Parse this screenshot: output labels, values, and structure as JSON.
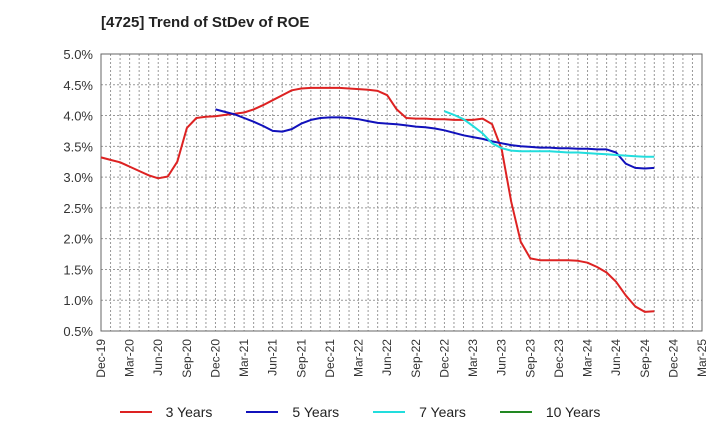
{
  "chart_data": {
    "type": "line",
    "title": "[4725]  Trend of StDev of ROE",
    "xlabel": "",
    "ylabel": "",
    "x_ticks": [
      "Dec-19",
      "Mar-20",
      "Jun-20",
      "Sep-20",
      "Dec-20",
      "Mar-21",
      "Jun-21",
      "Sep-21",
      "Dec-21",
      "Mar-22",
      "Jun-22",
      "Sep-22",
      "Dec-22",
      "Mar-23",
      "Jun-23",
      "Sep-23",
      "Dec-23",
      "Mar-24",
      "Jun-24",
      "Sep-24",
      "Dec-24",
      "Mar-25"
    ],
    "y_ticks": [
      "0.5%",
      "1.0%",
      "1.5%",
      "2.0%",
      "2.5%",
      "3.0%",
      "3.5%",
      "4.0%",
      "4.5%",
      "5.0%"
    ],
    "ylim": [
      0.5,
      5.0
    ],
    "grid": true,
    "legend_position": "bottom",
    "series": [
      {
        "name": "3 Years",
        "color": "#dd2222",
        "points": [
          [
            0,
            3.32
          ],
          [
            1,
            3.28
          ],
          [
            2,
            3.24
          ],
          [
            3,
            3.17
          ],
          [
            4,
            3.1
          ],
          [
            5,
            3.03
          ],
          [
            6,
            2.98
          ],
          [
            7,
            3.01
          ],
          [
            8,
            3.25
          ],
          [
            9,
            3.8
          ],
          [
            10,
            3.96
          ],
          [
            11,
            3.98
          ],
          [
            12,
            3.99
          ],
          [
            13,
            4.01
          ],
          [
            14,
            4.03
          ],
          [
            15,
            4.05
          ],
          [
            16,
            4.1
          ],
          [
            17,
            4.17
          ],
          [
            18,
            4.25
          ],
          [
            19,
            4.33
          ],
          [
            20,
            4.41
          ],
          [
            21,
            4.44
          ],
          [
            22,
            4.45
          ],
          [
            23,
            4.45
          ],
          [
            24,
            4.45
          ],
          [
            25,
            4.45
          ],
          [
            26,
            4.44
          ],
          [
            27,
            4.43
          ],
          [
            28,
            4.42
          ],
          [
            29,
            4.4
          ],
          [
            30,
            4.33
          ],
          [
            31,
            4.1
          ],
          [
            32,
            3.96
          ],
          [
            33,
            3.95
          ],
          [
            34,
            3.95
          ],
          [
            35,
            3.94
          ],
          [
            36,
            3.94
          ],
          [
            37,
            3.93
          ],
          [
            38,
            3.93
          ],
          [
            39,
            3.93
          ],
          [
            40,
            3.95
          ],
          [
            41,
            3.86
          ],
          [
            42,
            3.45
          ],
          [
            43,
            2.6
          ],
          [
            44,
            1.95
          ],
          [
            45,
            1.68
          ],
          [
            46,
            1.65
          ],
          [
            47,
            1.65
          ],
          [
            48,
            1.65
          ],
          [
            49,
            1.65
          ],
          [
            50,
            1.64
          ],
          [
            51,
            1.61
          ],
          [
            52,
            1.54
          ],
          [
            53,
            1.45
          ],
          [
            54,
            1.3
          ],
          [
            55,
            1.08
          ],
          [
            56,
            0.9
          ],
          [
            57,
            0.81
          ],
          [
            58,
            0.82
          ]
        ]
      },
      {
        "name": "5 Years",
        "color": "#1111bb",
        "points": [
          [
            12,
            4.1
          ],
          [
            13,
            4.06
          ],
          [
            14,
            4.02
          ],
          [
            15,
            3.96
          ],
          [
            16,
            3.9
          ],
          [
            17,
            3.83
          ],
          [
            18,
            3.75
          ],
          [
            19,
            3.74
          ],
          [
            20,
            3.78
          ],
          [
            21,
            3.87
          ],
          [
            22,
            3.93
          ],
          [
            23,
            3.96
          ],
          [
            24,
            3.97
          ],
          [
            25,
            3.97
          ],
          [
            26,
            3.96
          ],
          [
            27,
            3.94
          ],
          [
            28,
            3.91
          ],
          [
            29,
            3.88
          ],
          [
            30,
            3.87
          ],
          [
            31,
            3.86
          ],
          [
            32,
            3.84
          ],
          [
            33,
            3.82
          ],
          [
            34,
            3.81
          ],
          [
            35,
            3.79
          ],
          [
            36,
            3.76
          ],
          [
            37,
            3.72
          ],
          [
            38,
            3.68
          ],
          [
            39,
            3.65
          ],
          [
            40,
            3.62
          ],
          [
            41,
            3.58
          ],
          [
            42,
            3.55
          ],
          [
            43,
            3.52
          ],
          [
            44,
            3.5
          ],
          [
            45,
            3.49
          ],
          [
            46,
            3.48
          ],
          [
            47,
            3.48
          ],
          [
            48,
            3.47
          ],
          [
            49,
            3.47
          ],
          [
            50,
            3.46
          ],
          [
            51,
            3.46
          ],
          [
            52,
            3.45
          ],
          [
            53,
            3.45
          ],
          [
            54,
            3.4
          ],
          [
            55,
            3.22
          ],
          [
            56,
            3.15
          ],
          [
            57,
            3.14
          ],
          [
            58,
            3.15
          ]
        ]
      },
      {
        "name": "7 Years",
        "color": "#22dddd",
        "points": [
          [
            36,
            4.07
          ],
          [
            37,
            4.01
          ],
          [
            38,
            3.94
          ],
          [
            39,
            3.83
          ],
          [
            40,
            3.71
          ],
          [
            41,
            3.55
          ],
          [
            42,
            3.47
          ],
          [
            43,
            3.43
          ],
          [
            44,
            3.42
          ],
          [
            45,
            3.42
          ],
          [
            46,
            3.42
          ],
          [
            47,
            3.42
          ],
          [
            48,
            3.41
          ],
          [
            49,
            3.4
          ],
          [
            50,
            3.4
          ],
          [
            51,
            3.39
          ],
          [
            52,
            3.38
          ],
          [
            53,
            3.37
          ],
          [
            54,
            3.36
          ],
          [
            55,
            3.35
          ],
          [
            56,
            3.34
          ],
          [
            57,
            3.33
          ],
          [
            58,
            3.33
          ]
        ]
      },
      {
        "name": "10 Years",
        "color": "#228822",
        "points": []
      }
    ]
  }
}
